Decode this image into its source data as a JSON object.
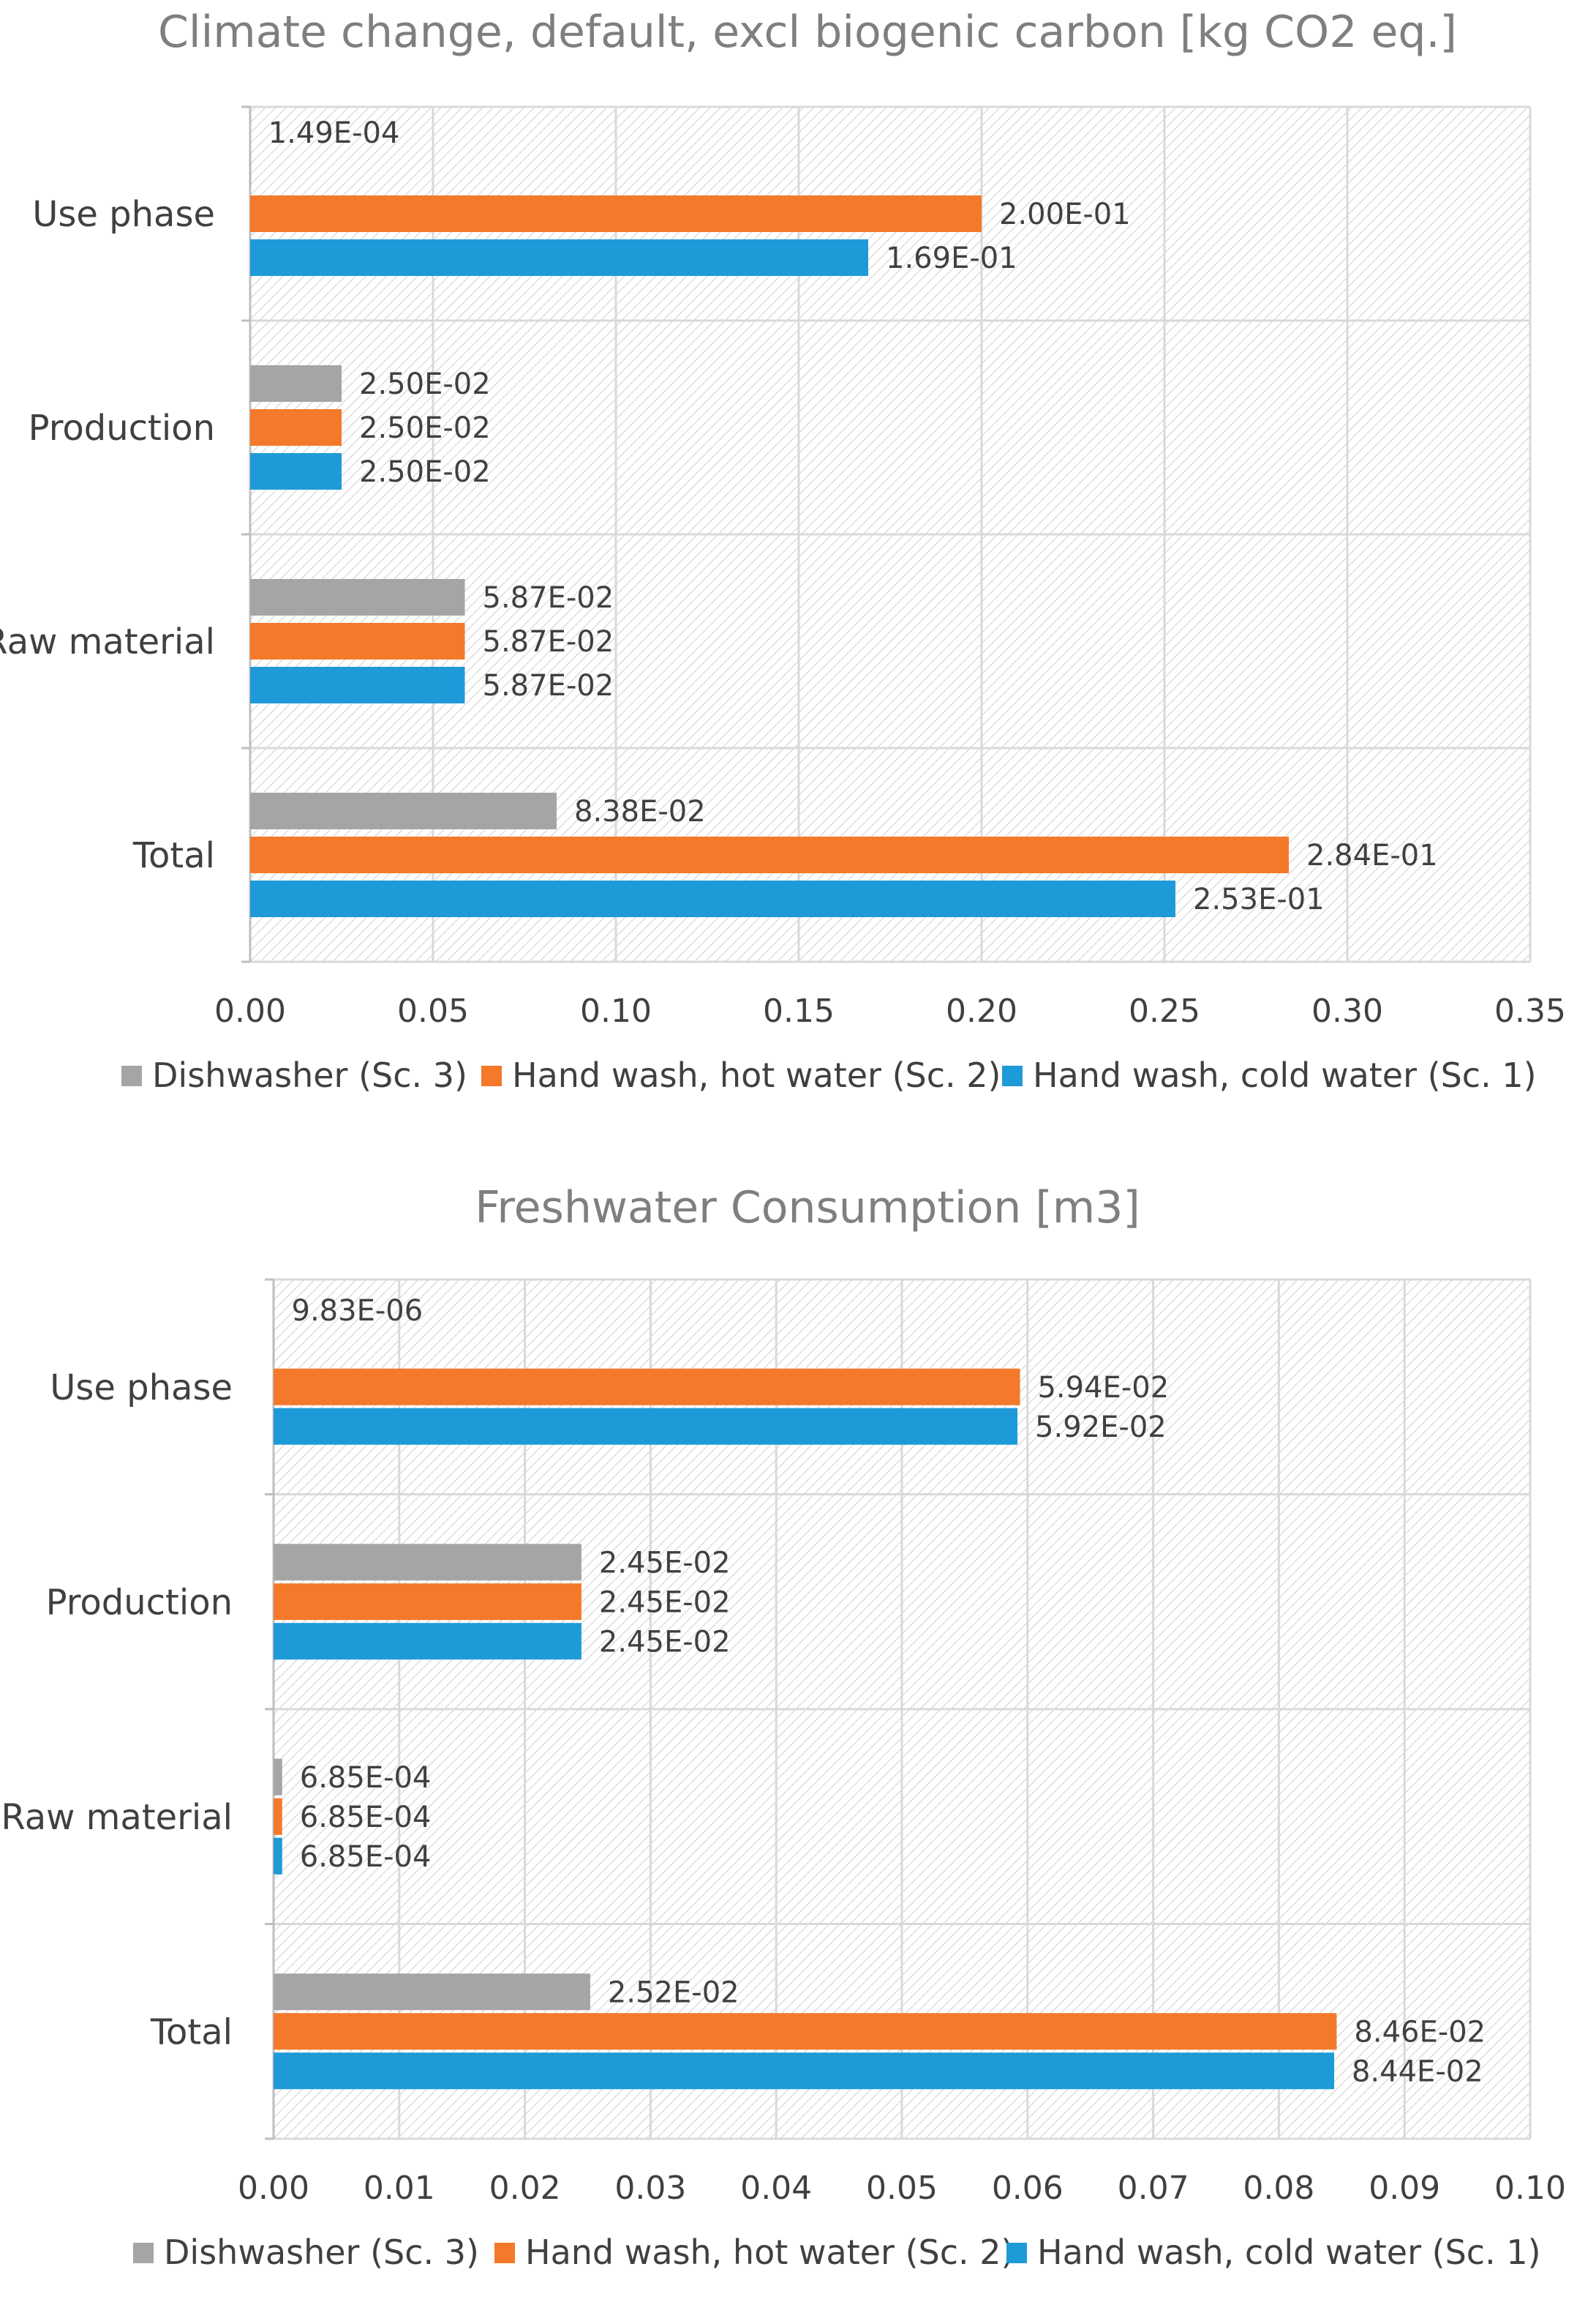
{
  "colors": {
    "dishwasher": "#a5a5a5",
    "hot": "#f4792a",
    "cold": "#1f9ad8",
    "grid": "#d9d9d9",
    "hatch": "#c8c8c8",
    "axis": "#bfbfbf",
    "text": "#404040",
    "title": "#7f7f7f"
  },
  "chart_data": [
    {
      "type": "bar",
      "orientation": "horizontal",
      "title": "Climate change, default, excl biogenic carbon [kg CO2 eq.]",
      "categories": [
        "Use phase",
        "Production",
        "Raw material",
        "Total"
      ],
      "series": [
        {
          "name": "Dishwasher (Sc. 3)",
          "color_key": "dishwasher",
          "values": [
            0.000149,
            0.025,
            0.0587,
            0.0838
          ],
          "labels": [
            "1.49E-04",
            "2.50E-02",
            "5.87E-02",
            "8.38E-02"
          ]
        },
        {
          "name": "Hand wash, hot water (Sc. 2)",
          "color_key": "hot",
          "values": [
            0.2,
            0.025,
            0.0587,
            0.284
          ],
          "labels": [
            "2.00E-01",
            "2.50E-02",
            "5.87E-02",
            "2.84E-01"
          ]
        },
        {
          "name": "Hand wash, cold water (Sc. 1)",
          "color_key": "cold",
          "values": [
            0.169,
            0.025,
            0.0587,
            0.253
          ],
          "labels": [
            "1.69E-01",
            "2.50E-02",
            "5.87E-02",
            "2.53E-01"
          ]
        }
      ],
      "xlim": [
        0,
        0.35
      ],
      "ticks": [
        0,
        0.05,
        0.1,
        0.15,
        0.2,
        0.25,
        0.3,
        0.35
      ],
      "tick_labels": [
        "0.00",
        "0.05",
        "0.10",
        "0.15",
        "0.20",
        "0.25",
        "0.30",
        "0.35"
      ],
      "xlabel": "",
      "ylabel": "",
      "grid": true,
      "legend_position": "bottom"
    },
    {
      "type": "bar",
      "orientation": "horizontal",
      "title": "Freshwater Consumption [m3]",
      "categories": [
        "Use phase",
        "Production",
        "Raw material",
        "Total"
      ],
      "series": [
        {
          "name": "Dishwasher (Sc. 3)",
          "color_key": "dishwasher",
          "values": [
            9.83e-06,
            0.0245,
            0.000685,
            0.0252
          ],
          "labels": [
            "9.83E-06",
            "2.45E-02",
            "6.85E-04",
            "2.52E-02"
          ]
        },
        {
          "name": "Hand wash, hot water (Sc. 2)",
          "color_key": "hot",
          "values": [
            0.0594,
            0.0245,
            0.000685,
            0.0846
          ],
          "labels": [
            "5.94E-02",
            "2.45E-02",
            "6.85E-04",
            "8.46E-02"
          ]
        },
        {
          "name": "Hand wash, cold water (Sc. 1)",
          "color_key": "cold",
          "values": [
            0.0592,
            0.0245,
            0.000685,
            0.0844
          ],
          "labels": [
            "5.92E-02",
            "2.45E-02",
            "6.85E-04",
            "8.44E-02"
          ]
        }
      ],
      "xlim": [
        0,
        0.1
      ],
      "ticks": [
        0,
        0.01,
        0.02,
        0.03,
        0.04,
        0.05,
        0.06,
        0.07,
        0.08,
        0.09,
        0.1
      ],
      "tick_labels": [
        "0.00",
        "0.01",
        "0.02",
        "0.03",
        "0.04",
        "0.05",
        "0.06",
        "0.07",
        "0.08",
        "0.09",
        "0.10"
      ],
      "xlabel": "",
      "ylabel": "",
      "grid": true,
      "legend_position": "bottom"
    }
  ]
}
